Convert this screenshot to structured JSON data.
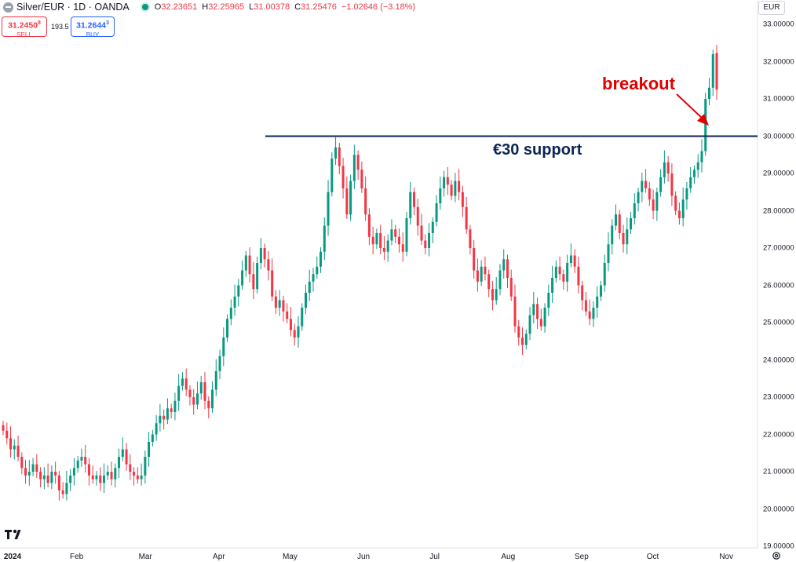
{
  "header": {
    "symbol": "Silver/EUR · 1D · OANDA",
    "o_label": "O",
    "o_value": "32.23651",
    "h_label": "H",
    "h_value": "32.25965",
    "l_label": "L",
    "l_value": "31.00378",
    "c_label": "C",
    "c_value": "31.25476",
    "change": "−1.02646 (−3.18%)"
  },
  "trade": {
    "sell_price": "31.2450",
    "sell_sup": "8",
    "sell_label": "SELL",
    "spread": "193.5",
    "buy_price": "31.2644",
    "buy_sup": "3",
    "buy_label": "BUY"
  },
  "currency": "EUR",
  "annotations": {
    "breakout": "breakout",
    "support": "€30 support"
  },
  "colors": {
    "up": "#089981",
    "down": "#f23645",
    "support_line": "#0c2554",
    "arrow": "#e00000"
  },
  "chart_data": {
    "type": "candlestick",
    "title": "Silver/EUR · 1D · OANDA",
    "ylim": [
      19,
      33
    ],
    "y_ticks": [
      "33.00000",
      "32.00000",
      "31.00000",
      "30.00000",
      "29.00000",
      "28.00000",
      "27.00000",
      "26.00000",
      "25.00000",
      "24.00000",
      "23.00000",
      "22.00000",
      "21.00000",
      "20.00000",
      "19.00000"
    ],
    "x_ticks": [
      {
        "label": "2024",
        "day": 0
      },
      {
        "label": "Feb",
        "day": 31
      },
      {
        "label": "Mar",
        "day": 60
      },
      {
        "label": "Apr",
        "day": 91
      },
      {
        "label": "May",
        "day": 121
      },
      {
        "label": "Jun",
        "day": 152
      },
      {
        "label": "Jul",
        "day": 182
      },
      {
        "label": "Aug",
        "day": 213
      },
      {
        "label": "Sep",
        "day": 244
      },
      {
        "label": "Oct",
        "day": 274
      },
      {
        "label": "Nov",
        "day": 305
      }
    ],
    "support_level": 30.0,
    "close": [
      22.1,
      21.9,
      21.6,
      21.7,
      21.4,
      21.1,
      20.9,
      21.0,
      21.2,
      21.0,
      20.8,
      20.9,
      20.7,
      21.0,
      20.9,
      20.5,
      20.4,
      20.7,
      20.9,
      21.1,
      21.3,
      21.4,
      21.2,
      20.9,
      20.8,
      20.9,
      20.7,
      20.9,
      21.0,
      20.8,
      21.1,
      21.4,
      21.6,
      21.2,
      21.0,
      20.9,
      20.8,
      20.9,
      21.4,
      21.8,
      22.0,
      22.3,
      22.5,
      22.4,
      22.7,
      22.6,
      22.9,
      23.3,
      23.5,
      23.2,
      23.0,
      22.8,
      23.1,
      23.4,
      22.9,
      22.7,
      23.2,
      23.7,
      24.1,
      24.6,
      25.1,
      25.4,
      25.7,
      26.0,
      26.4,
      26.8,
      26.3,
      25.9,
      26.6,
      27.0,
      26.7,
      26.4,
      25.7,
      25.4,
      25.6,
      25.3,
      25.1,
      24.8,
      24.6,
      24.9,
      25.4,
      25.8,
      26.1,
      26.3,
      26.5,
      26.9,
      27.6,
      28.5,
      29.4,
      29.7,
      29.2,
      28.6,
      27.9,
      28.8,
      29.5,
      29.1,
      28.6,
      27.9,
      27.3,
      27.1,
      27.4,
      27.0,
      26.9,
      27.2,
      27.5,
      27.3,
      27.1,
      26.9,
      27.8,
      28.5,
      28.1,
      27.6,
      27.2,
      27.0,
      27.4,
      27.7,
      28.2,
      28.6,
      28.9,
      28.7,
      28.4,
      28.8,
      28.5,
      28.1,
      27.5,
      27.0,
      26.4,
      26.1,
      26.5,
      26.3,
      25.9,
      25.6,
      25.9,
      26.4,
      26.7,
      26.2,
      25.7,
      24.9,
      24.6,
      24.4,
      24.7,
      25.2,
      25.5,
      25.1,
      24.9,
      25.4,
      25.8,
      26.2,
      26.5,
      26.3,
      26.1,
      26.6,
      26.8,
      26.5,
      26.0,
      25.6,
      25.3,
      25.1,
      25.4,
      25.7,
      26.0,
      26.6,
      27.1,
      27.6,
      27.9,
      27.4,
      27.1,
      27.5,
      27.8,
      28.2,
      28.5,
      28.8,
      28.6,
      28.3,
      28.0,
      28.5,
      28.9,
      29.3,
      29.0,
      28.4,
      28.0,
      27.8,
      28.3,
      28.6,
      28.9,
      29.1,
      29.3,
      29.6,
      31.0,
      31.3,
      32.2,
      31.25
    ]
  }
}
